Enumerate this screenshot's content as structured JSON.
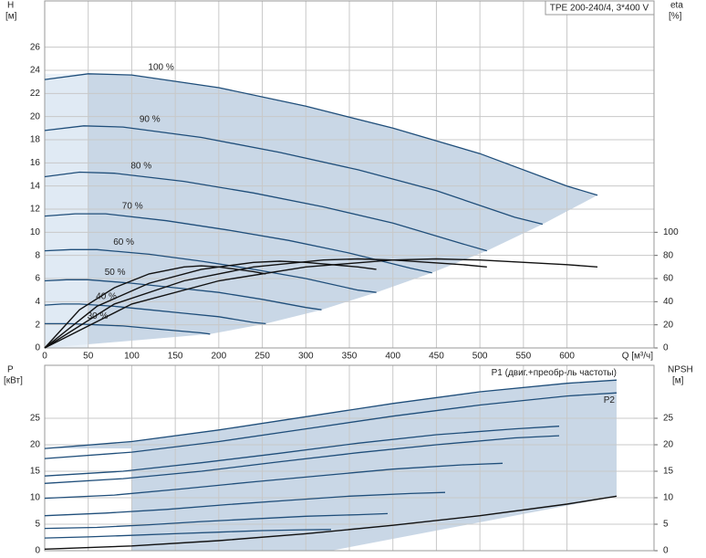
{
  "chart_data": [
    {
      "type": "line",
      "title": "TPE 200-240/4, 3*400 V",
      "y_label": "H",
      "y_unit": "[м]",
      "y2_label": "eta",
      "y2_unit": "[%]",
      "x_label": "Q [м³/ч]",
      "xlim": [
        0,
        700
      ],
      "xticks": [
        0,
        50,
        100,
        150,
        200,
        250,
        300,
        350,
        400,
        450,
        500,
        550,
        600
      ],
      "ylim": [
        0,
        30
      ],
      "yticks": [
        0,
        2,
        4,
        6,
        8,
        10,
        12,
        14,
        16,
        18,
        20,
        22,
        24,
        26
      ],
      "y2lim": [
        0,
        300
      ],
      "y2ticks": [
        0,
        20,
        40,
        60,
        80,
        100
      ],
      "grid": true,
      "series": [
        {
          "name": "100 %",
          "color": "#1f4e7a",
          "x": [
            0,
            50,
            100,
            200,
            300,
            400,
            500,
            600,
            635
          ],
          "values": [
            23.2,
            23.7,
            23.6,
            22.5,
            20.9,
            19.0,
            16.8,
            14.0,
            13.2
          ]
        },
        {
          "name": "90 %",
          "color": "#1f4e7a",
          "x": [
            0,
            45,
            90,
            180,
            270,
            360,
            450,
            540,
            572
          ],
          "values": [
            18.8,
            19.2,
            19.1,
            18.2,
            16.9,
            15.4,
            13.6,
            11.3,
            10.7
          ]
        },
        {
          "name": "80 %",
          "color": "#1f4e7a",
          "x": [
            0,
            40,
            80,
            160,
            240,
            320,
            400,
            480,
            508
          ],
          "values": [
            14.8,
            15.2,
            15.1,
            14.4,
            13.4,
            12.2,
            10.8,
            9.0,
            8.4
          ]
        },
        {
          "name": "70 %",
          "color": "#1f4e7a",
          "x": [
            0,
            35,
            70,
            140,
            210,
            280,
            350,
            420,
            445
          ],
          "values": [
            11.4,
            11.6,
            11.6,
            11.0,
            10.2,
            9.3,
            8.2,
            6.9,
            6.5
          ]
        },
        {
          "name": "60 %",
          "color": "#1f4e7a",
          "x": [
            0,
            30,
            60,
            120,
            180,
            240,
            300,
            360,
            381
          ],
          "values": [
            8.4,
            8.5,
            8.5,
            8.1,
            7.5,
            6.8,
            6.0,
            5.0,
            4.8
          ]
        },
        {
          "name": "50 %",
          "color": "#1f4e7a",
          "x": [
            0,
            25,
            50,
            100,
            150,
            200,
            250,
            300,
            318
          ],
          "values": [
            5.8,
            5.9,
            5.9,
            5.6,
            5.2,
            4.8,
            4.2,
            3.5,
            3.3
          ]
        },
        {
          "name": "40 %",
          "color": "#1f4e7a",
          "x": [
            0,
            20,
            40,
            80,
            120,
            160,
            200,
            240,
            254
          ],
          "values": [
            3.7,
            3.8,
            3.8,
            3.6,
            3.3,
            3.0,
            2.7,
            2.2,
            2.1
          ]
        },
        {
          "name": "30 %",
          "color": "#1f4e7a",
          "x": [
            0,
            15,
            30,
            60,
            90,
            120,
            150,
            180,
            190
          ],
          "values": [
            2.1,
            2.1,
            2.1,
            2.0,
            1.9,
            1.7,
            1.5,
            1.3,
            1.2
          ]
        },
        {
          "axis": "y2",
          "color": "#111111",
          "x": [
            0,
            100,
            200,
            300,
            400,
            450,
            500,
            600,
            635
          ],
          "values": [
            0,
            38,
            58,
            70,
            76,
            77,
            76,
            72,
            70
          ]
        },
        {
          "axis": "y2",
          "color": "#111111",
          "x": [
            0,
            80,
            160,
            240,
            320,
            360,
            400,
            480,
            508
          ],
          "values": [
            0,
            38,
            58,
            70,
            76,
            77,
            76,
            72,
            70
          ]
        },
        {
          "axis": "y2",
          "color": "#111111",
          "x": [
            0,
            60,
            120,
            180,
            240,
            270,
            300,
            360,
            381
          ],
          "values": [
            0,
            36,
            56,
            68,
            74,
            75,
            74,
            70,
            68
          ]
        },
        {
          "axis": "y2",
          "color": "#111111",
          "x": [
            0,
            40,
            80,
            120,
            160,
            180,
            200,
            240,
            254
          ],
          "values": [
            0,
            33,
            52,
            64,
            70,
            71,
            70,
            66,
            64
          ]
        }
      ]
    },
    {
      "type": "line",
      "y_label": "P",
      "y_unit": "[кВт]",
      "y2_label": "NPSH",
      "y2_unit": "[м]",
      "xlim": [
        0,
        700
      ],
      "ylim": [
        0,
        35
      ],
      "yticks": [
        0,
        5,
        10,
        15,
        20,
        25
      ],
      "y2lim": [
        0,
        35
      ],
      "y2ticks": [
        0,
        5,
        10,
        15,
        20,
        25
      ],
      "grid": true,
      "series": [
        {
          "name": "P1 (двиг.+преобр-ль частоты)",
          "color": "#1f4e7a",
          "x": [
            0,
            100,
            200,
            300,
            400,
            500,
            600,
            657
          ],
          "values": [
            19.3,
            20.6,
            22.8,
            25.3,
            27.8,
            30.0,
            31.6,
            32.2
          ]
        },
        {
          "name": "P2",
          "color": "#1f4e7a",
          "x": [
            0,
            100,
            200,
            300,
            400,
            500,
            600,
            657
          ],
          "values": [
            17.4,
            18.6,
            20.6,
            23.0,
            25.4,
            27.5,
            29.2,
            29.8
          ]
        },
        {
          "color": "#1f4e7a",
          "x": [
            0,
            90,
            180,
            270,
            360,
            450,
            540,
            591
          ],
          "values": [
            14.1,
            15.0,
            16.6,
            18.4,
            20.3,
            21.9,
            23.0,
            23.5
          ]
        },
        {
          "color": "#1f4e7a",
          "x": [
            0,
            90,
            180,
            270,
            360,
            450,
            540,
            591
          ],
          "values": [
            12.7,
            13.6,
            15.0,
            16.8,
            18.5,
            20.0,
            21.3,
            21.7
          ]
        },
        {
          "color": "#1f4e7a",
          "x": [
            0,
            80,
            160,
            240,
            320,
            400,
            480,
            526
          ],
          "values": [
            9.9,
            10.5,
            11.7,
            13.0,
            14.2,
            15.4,
            16.2,
            16.5
          ]
        },
        {
          "color": "#1f4e7a",
          "x": [
            0,
            70,
            140,
            210,
            280,
            350,
            420,
            460
          ],
          "values": [
            6.6,
            7.1,
            7.8,
            8.7,
            9.5,
            10.3,
            10.8,
            11.0
          ]
        },
        {
          "color": "#1f4e7a",
          "x": [
            0,
            60,
            120,
            180,
            240,
            300,
            360,
            394
          ],
          "values": [
            4.2,
            4.4,
            4.9,
            5.5,
            6.0,
            6.5,
            6.8,
            7.0
          ]
        },
        {
          "color": "#1f4e7a",
          "x": [
            0,
            50,
            100,
            150,
            200,
            250,
            300,
            329
          ],
          "values": [
            2.4,
            2.6,
            2.9,
            3.2,
            3.5,
            3.8,
            3.95,
            4.0
          ]
        },
        {
          "axis": "y2",
          "color": "#111111",
          "x": [
            0,
            100,
            200,
            300,
            400,
            500,
            600,
            657
          ],
          "values": [
            0.3,
            0.9,
            1.9,
            3.2,
            4.8,
            6.6,
            8.8,
            10.3
          ]
        }
      ]
    }
  ]
}
